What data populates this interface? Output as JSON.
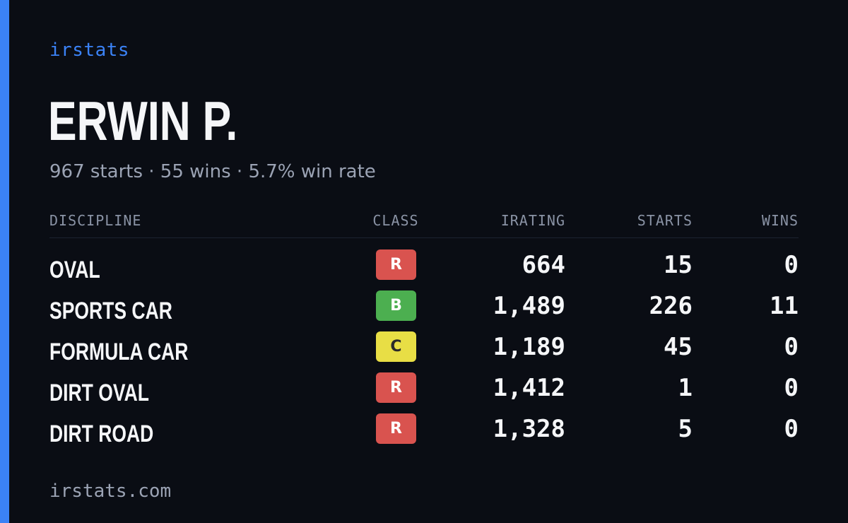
{
  "brand": "irstats",
  "driver": {
    "name": "ERWIN P.",
    "summary": "967 starts · 55 wins · 5.7% win rate"
  },
  "table": {
    "headers": {
      "discipline": "DISCIPLINE",
      "class": "CLASS",
      "irating": "IRATING",
      "starts": "STARTS",
      "wins": "WINS"
    },
    "rows": [
      {
        "discipline": "OVAL",
        "class": "R",
        "irating": "664",
        "starts": "15",
        "wins": "0"
      },
      {
        "discipline": "SPORTS CAR",
        "class": "B",
        "irating": "1,489",
        "starts": "226",
        "wins": "11"
      },
      {
        "discipline": "FORMULA CAR",
        "class": "C",
        "irating": "1,189",
        "starts": "45",
        "wins": "0"
      },
      {
        "discipline": "DIRT OVAL",
        "class": "R",
        "irating": "1,412",
        "starts": "1",
        "wins": "0"
      },
      {
        "discipline": "DIRT ROAD",
        "class": "R",
        "irating": "1,328",
        "starts": "5",
        "wins": "0"
      }
    ]
  },
  "class_colors": {
    "R": {
      "bg": "#d9534f",
      "fg": "#ffffff"
    },
    "B": {
      "bg": "#4caf50",
      "fg": "#ffffff"
    },
    "C": {
      "bg": "#e8de45",
      "fg": "#2a2a2a"
    }
  },
  "colors": {
    "accent": "#3b82f6",
    "background": "#0a0d14"
  },
  "footer": "irstats.com"
}
